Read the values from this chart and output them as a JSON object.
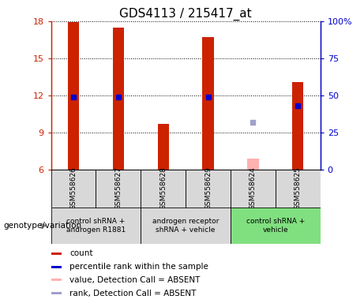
{
  "title": "GDS4113 / 215417_at",
  "samples": [
    "GSM558626",
    "GSM558627",
    "GSM558628",
    "GSM558629",
    "GSM558624",
    "GSM558625"
  ],
  "count_values": [
    17.9,
    17.5,
    9.7,
    16.7,
    null,
    13.1
  ],
  "count_absent_values": [
    null,
    null,
    null,
    null,
    6.9,
    null
  ],
  "rank_values": [
    11.9,
    11.9,
    null,
    11.9,
    null,
    11.2
  ],
  "rank_absent_values": [
    null,
    null,
    null,
    null,
    9.8,
    null
  ],
  "count_color": "#cc2200",
  "count_absent_color": "#ffb0b0",
  "rank_color": "#0000cc",
  "rank_absent_color": "#a0a0cc",
  "ylim_left": [
    6,
    18
  ],
  "ylim_right": [
    0,
    100
  ],
  "left_ticks": [
    6,
    9,
    12,
    15,
    18
  ],
  "right_ticks": [
    0,
    25,
    50,
    75,
    100
  ],
  "left_tick_labels": [
    "6",
    "9",
    "12",
    "15",
    "18"
  ],
  "right_tick_labels": [
    "0",
    "25",
    "50",
    "75",
    "100%"
  ],
  "bar_width": 0.25,
  "group_defs": [
    {
      "start": 0,
      "end": 2,
      "label": "control shRNA +\nandrogen R1881",
      "bg": "#d8d8d8"
    },
    {
      "start": 2,
      "end": 4,
      "label": "androgen receptor\nshRNA + vehicle",
      "bg": "#d8d8d8"
    },
    {
      "start": 4,
      "end": 6,
      "label": "control shRNA +\nvehicle",
      "bg": "#80e080"
    }
  ],
  "sample_bg": "#d8d8d8",
  "legend_items": [
    {
      "color": "#cc2200",
      "label": "count"
    },
    {
      "color": "#0000cc",
      "label": "percentile rank within the sample"
    },
    {
      "color": "#ffb0b0",
      "label": "value, Detection Call = ABSENT"
    },
    {
      "color": "#a0a0cc",
      "label": "rank, Detection Call = ABSENT"
    }
  ],
  "figsize": [
    4.61,
    3.84
  ],
  "dpi": 100
}
